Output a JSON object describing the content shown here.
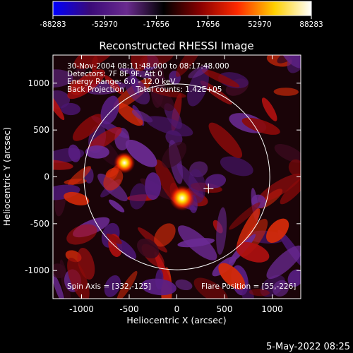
{
  "colorbar": {
    "ticks": [
      "-88283",
      "-52970",
      "-17656",
      "17656",
      "52970",
      "88283"
    ],
    "colors": [
      "#0000ff",
      "#3a0a78",
      "#6a2b8f",
      "#000000",
      "#8a0000",
      "#ff2a00",
      "#ffd000",
      "#ffffff"
    ]
  },
  "chart_data": {
    "type": "heatmap",
    "title": "Reconstructed RHESSI Image",
    "xlabel": "Heliocentric X (arcsec)",
    "ylabel": "Heliocentric Y (arcsec)",
    "xlim": [
      -1300,
      1300
    ],
    "ylim": [
      -1300,
      1300
    ],
    "x_ticks": [
      "-1000",
      "-500",
      "0",
      "500",
      "1000"
    ],
    "y_ticks": [
      "-1000",
      "-500",
      "0",
      "500",
      "1000"
    ],
    "x_tick_values": [
      -1000,
      -500,
      0,
      500,
      1000
    ],
    "y_tick_values": [
      -1000,
      -500,
      0,
      500,
      1000
    ],
    "annotations": [
      "30-Nov-2004 08:11:48.000 to 08:17:48.000",
      "Detectors: 7F 8F 9F, Att 0",
      "Energy Range: 6.0 - 12.0 keV",
      "Back Projection     Total counts: 1.42E+05"
    ],
    "spin_axis_label": "Spin Axis = [332,-125]",
    "flare_position_label": "Flare Position = [55,-226]",
    "spin_axis": [
      332,
      -125
    ],
    "flare_position": [
      55,
      -226
    ],
    "limb_radius": 975,
    "sources": [
      {
        "x": 55,
        "y": -226,
        "peak": 88283
      },
      {
        "x": -550,
        "y": 150,
        "peak": 70000
      }
    ]
  },
  "footer": {
    "timestamp": "5-May-2022 08:25"
  }
}
